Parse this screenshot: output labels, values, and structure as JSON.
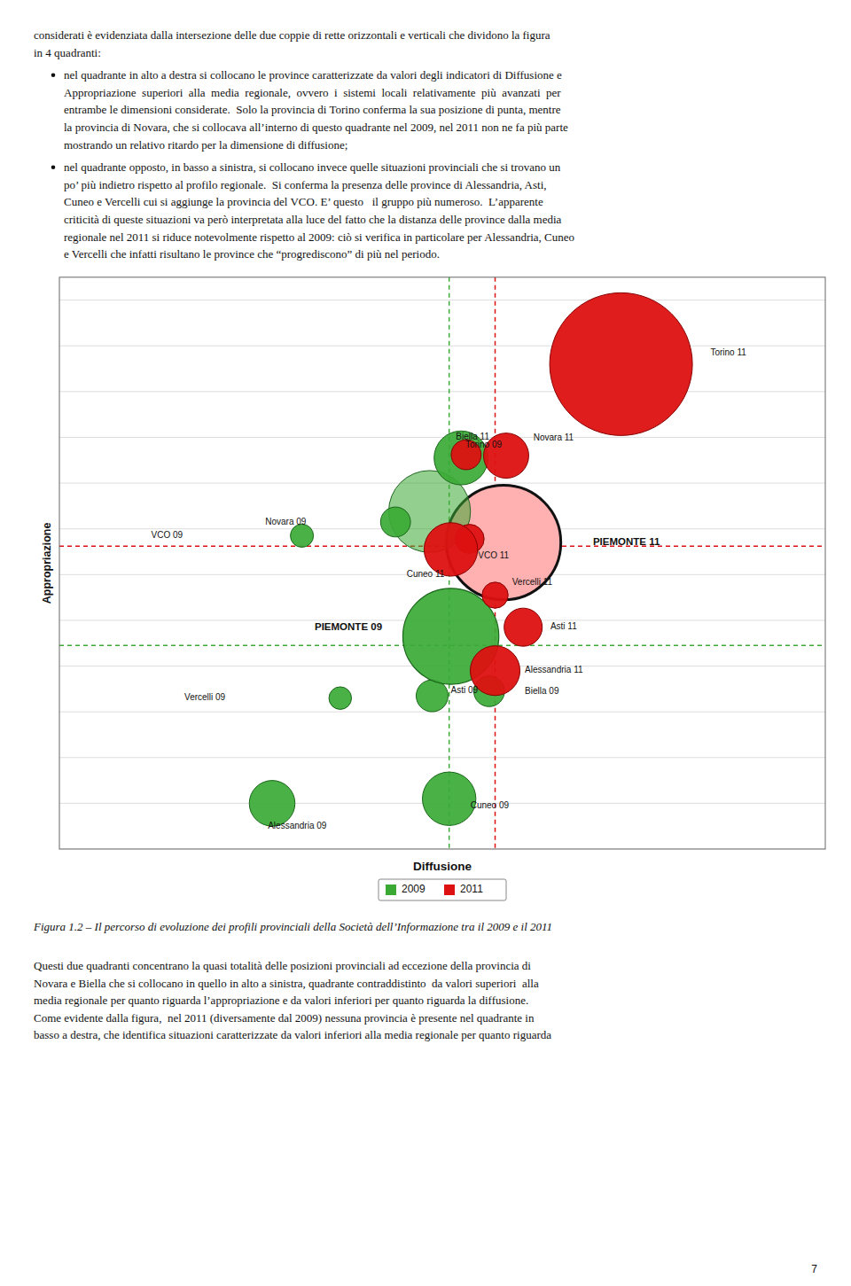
{
  "chart_data": {
    "type": "bubble",
    "xlabel": "Diffusione",
    "ylabel": "Appropriazione",
    "xlim": [
      -4.5,
      4.5
    ],
    "ylim": [
      -6.5,
      6.0
    ],
    "yticks": [
      -6.5,
      -5.5,
      -4.5,
      -3.5,
      -2.5,
      -1.5,
      -0.5,
      0.5,
      1.5,
      2.5,
      3.5,
      4.5,
      5.5
    ],
    "grid": true,
    "tick_labels": false,
    "legend": "bottom",
    "series": [
      {
        "name": "2009",
        "color": "#3aaa35",
        "labels": [
          "Torino 09",
          "Novara 09",
          "VCO 09",
          "Asti 09",
          "Biella 09",
          "Vercelli 09",
          "Alessandria 09",
          "Cuneo 09"
        ],
        "x": [
          0.22,
          -0.55,
          -1.65,
          -0.12,
          0.55,
          -1.2,
          -2.0,
          0.08
        ],
        "values": [
          2.05,
          0.65,
          0.35,
          -3.15,
          -3.05,
          -3.2,
          -5.5,
          -5.4
        ],
        "sizes": [
          600,
          185,
          110,
          210,
          195,
          105,
          430,
          590
        ],
        "ref_x": 0.08,
        "ref_y": -2.05
      },
      {
        "name": "2011",
        "color": "#dd1111",
        "labels": [
          "Torino 11",
          "Novara 11",
          "Biella 11",
          "VCO 11",
          "Cuneo 11",
          "Vercelli 11",
          "Asti 11",
          "Alessandria 11"
        ],
        "x": [
          2.1,
          0.75,
          0.28,
          0.32,
          0.1,
          0.62,
          0.95,
          0.62
        ],
        "values": [
          4.1,
          2.1,
          2.12,
          0.28,
          0.05,
          -0.95,
          -1.65,
          -2.6
        ],
        "sizes": [
          4200,
          420,
          185,
          175,
          590,
          140,
          300,
          510
        ],
        "ref_x": 0.62,
        "ref_y": 0.12
      }
    ],
    "regional": [
      {
        "label": "PIEMONTE 09",
        "x": 0.1,
        "y": -1.85,
        "size": 1900,
        "color": "#3aaa35"
      },
      {
        "label": "PIEMONTE 11",
        "x": 0.72,
        "y": 0.2,
        "size": 2700,
        "color": "#ffb0b0"
      }
    ],
    "extra_bubbles": [
      {
        "x": -0.15,
        "y": 0.88,
        "size": 1380,
        "color": "#3aaa35"
      }
    ]
  },
  "page": {
    "top_text": [
      "considerati è evidenziata dalla intersezione delle due coppie di rette orizzontali e verticali che dividono la figura",
      "in 4 quadranti:"
    ],
    "bullets": [
      [
        "nel quadrante in alto a destra si collocano le province caratterizzate da valori degli indicatori di Diffusione e",
        "Appropriazione  superiori  alla  media  regionale,  ovvero  i  sistemi  locali  relativamente  più  avanzati  per",
        "entrambe le dimensioni considerate.  Solo la provincia di Torino conferma la sua posizione di punta, mentre",
        "la provincia di Novara, che si collocava all’interno di questo quadrante nel 2009, nel 2011 non ne fa più parte",
        "mostrando un relativo ritardo per la dimensione di diffusione;"
      ],
      [
        "nel quadrante opposto, in basso a sinistra, si collocano invece quelle situazioni provinciali che si trovano un",
        "po’ più indietro rispetto al profilo regionale.  Si conferma la presenza delle province di Alessandria, Asti,",
        "Cuneo e Vercelli cui si aggiunge la provincia del VCO. E’ questo   il gruppo più numeroso.  L’apparente",
        "criticità di queste situazioni va però interpretata alla luce del fatto che la distanza delle province dalla media",
        "regionale nel 2011 si riduce notevolmente rispetto al 2009: ciò si verifica in particolare per Alessandria, Cuneo",
        "e Vercelli che infatti risultano le province che “progrediscono” di più nel periodo."
      ]
    ],
    "caption": "Figura 1.2 – Il percorso di evoluzione dei profili provinciali della Società dell’Informazione tra il 2009 e il 2011",
    "bottom_text": [
      "Questi due quadranti concentrano la quasi totalità delle posizioni provinciali ad eccezione della provincia di",
      "Novara e Biella che si collocano in quello in alto a sinistra, quadrante contraddistinto  da valori superiori  alla",
      "media regionale per quanto riguarda l’appropriazione e da valori inferiori per quanto riguarda la diffusione.",
      "Come evidente dalla figura,  nel 2011 (diversamente dal 2009) nessuna provincia è presente nel quadrante in",
      "basso a destra, che identifica situazioni caratterizzate da valori inferiori alla media regionale per quanto riguarda"
    ],
    "page_number": "7"
  }
}
